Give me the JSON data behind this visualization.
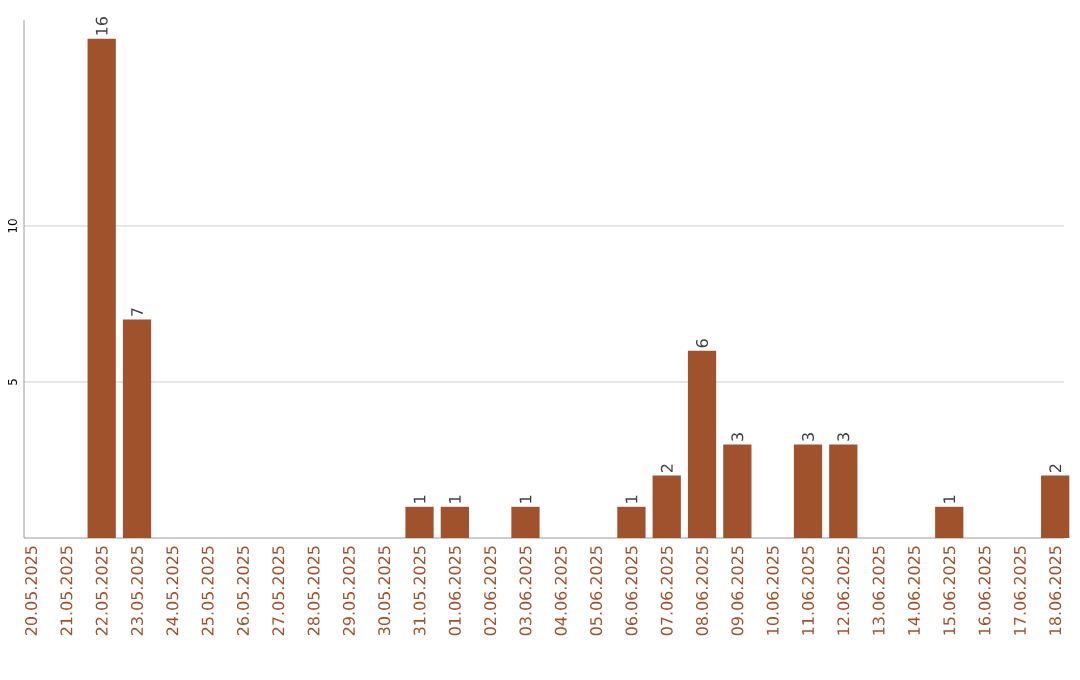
{
  "chart_data": {
    "type": "bar",
    "color": "#a0522d",
    "categories": [
      "20.05.2025",
      "21.05.2025",
      "22.05.2025",
      "23.05.2025",
      "24.05.2025",
      "25.05.2025",
      "26.05.2025",
      "27.05.2025",
      "28.05.2025",
      "29.05.2025",
      "30.05.2025",
      "31.05.2025",
      "01.06.2025",
      "02.06.2025",
      "03.06.2025",
      "04.06.2025",
      "05.06.2025",
      "06.06.2025",
      "07.06.2025",
      "08.06.2025",
      "09.06.2025",
      "10.06.2025",
      "11.06.2025",
      "12.06.2025",
      "13.06.2025",
      "14.06.2025",
      "15.06.2025",
      "16.06.2025",
      "17.06.2025",
      "18.06.2025"
    ],
    "values": [
      0,
      0,
      16,
      7,
      0,
      0,
      0,
      0,
      0,
      0,
      0,
      1,
      1,
      0,
      1,
      0,
      0,
      1,
      2,
      6,
      3,
      0,
      3,
      3,
      0,
      0,
      1,
      0,
      0,
      2
    ],
    "value_labels": [
      null,
      null,
      "16",
      "7",
      null,
      null,
      null,
      null,
      null,
      null,
      null,
      "1",
      "1",
      null,
      "1",
      null,
      null,
      "1",
      "2",
      "6",
      "3",
      null,
      "3",
      "3",
      null,
      null,
      "1",
      null,
      null,
      "2"
    ],
    "ylim": [
      0,
      16.6
    ],
    "yticks": [
      5,
      10
    ],
    "grid": "y"
  }
}
